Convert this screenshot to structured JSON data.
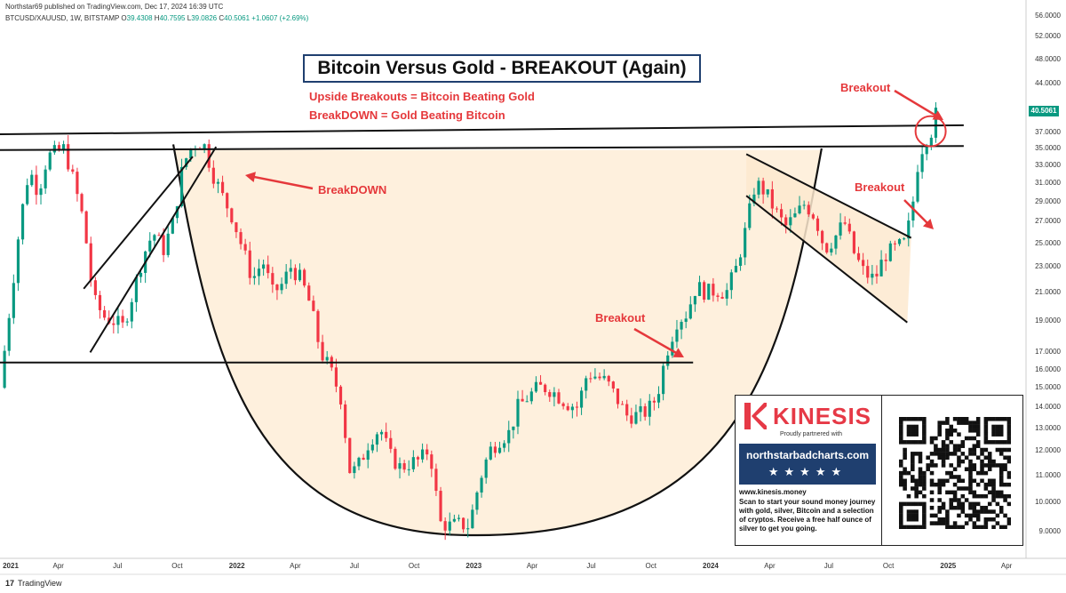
{
  "header": {
    "publisher": "Northstar69 published on TradingView.com, Dec 17, 2024 16:39 UTC",
    "symbol": "BTCUSD/XAUUSD, 1W, BITSTAMP",
    "open_label": "O",
    "open": "39.4308",
    "high_label": "H",
    "high": "40.7595",
    "low_label": "L",
    "low": "39.0826",
    "close_label": "C",
    "close": "40.5061",
    "change": "+1.0607 (+2.69%)"
  },
  "annotations": {
    "title": "Bitcoin Versus Gold - BREAKOUT (Again)",
    "subtitle1": "Upside Breakouts = Bitcoin Beating Gold",
    "subtitle2": "BreakDOWN = Gold Beating Bitcoin",
    "breakdown": "BreakDOWN",
    "breakout": "Breakout",
    "breakout_top": "Breakout",
    "breakout_wedge": "Breakout"
  },
  "price_tag": "40.5061",
  "footer": {
    "brand": "TradingView",
    "mark": "17"
  },
  "colors": {
    "up": "#089981",
    "down": "#f23645",
    "accent": "#e5383b",
    "fill": "#fde9cf",
    "navy": "#1f3f6f"
  },
  "ad": {
    "brand": "KINESIS",
    "tagline": "Proudly partnered with",
    "site_banner": "northstarbadcharts.com",
    "stars": "★★★★★",
    "url": "www.kinesis.money",
    "body": "Scan to start your sound money journey with gold, silver, Bitcoin and a selection of cryptos. Receive a free half ounce of silver to get you going.",
    "qr_icon": "qr-code-icon",
    "logo_icon": "kinesis-k-icon"
  },
  "chart_data": {
    "type": "candlestick",
    "title": "Bitcoin Versus Gold - BREAKOUT (Again)",
    "scale": "log",
    "ylim": [
      8.2,
      57
    ],
    "xlim": [
      "2021-01-01",
      "2025-05-01"
    ],
    "yticks": [
      "56.0000",
      "52.0000",
      "48.0000",
      "44.0000",
      "37.0000",
      "35.0000",
      "33.0000",
      "31.0000",
      "29.0000",
      "27.0000",
      "25.0000",
      "23.0000",
      "21.0000",
      "19.0000",
      "17.0000",
      "16.0000",
      "15.0000",
      "14.0000",
      "13.0000",
      "12.0000",
      "11.0000",
      "10.0000",
      "9.0000"
    ],
    "xticks": [
      {
        "label": "2021",
        "date": "2021-01-01",
        "bold": true
      },
      {
        "label": "Apr",
        "date": "2021-04-01"
      },
      {
        "label": "Jul",
        "date": "2021-07-01"
      },
      {
        "label": "Oct",
        "date": "2021-10-01"
      },
      {
        "label": "2022",
        "date": "2022-01-01",
        "bold": true
      },
      {
        "label": "Apr",
        "date": "2022-04-01"
      },
      {
        "label": "Jul",
        "date": "2022-07-01"
      },
      {
        "label": "Oct",
        "date": "2022-10-01"
      },
      {
        "label": "2023",
        "date": "2023-01-01",
        "bold": true
      },
      {
        "label": "Apr",
        "date": "2023-04-01"
      },
      {
        "label": "Jul",
        "date": "2023-07-01"
      },
      {
        "label": "Oct",
        "date": "2023-10-01"
      },
      {
        "label": "2024",
        "date": "2024-01-01",
        "bold": true
      },
      {
        "label": "Apr",
        "date": "2024-04-01"
      },
      {
        "label": "Jul",
        "date": "2024-07-01"
      },
      {
        "label": "Oct",
        "date": "2024-10-01"
      },
      {
        "label": "2025",
        "date": "2025-01-01",
        "bold": true
      },
      {
        "label": "Apr",
        "date": "2025-04-01"
      }
    ],
    "series_path": [
      [
        "2021-01-01",
        15.0
      ],
      [
        "2021-01-15",
        19.5
      ],
      [
        "2021-02-01",
        27.0
      ],
      [
        "2021-02-15",
        32.5
      ],
      [
        "2021-03-01",
        30.0
      ],
      [
        "2021-03-15",
        34.0
      ],
      [
        "2021-04-10",
        35.0
      ],
      [
        "2021-04-25",
        31.0
      ],
      [
        "2021-05-10",
        27.0
      ],
      [
        "2021-05-25",
        20.5
      ],
      [
        "2021-06-10",
        19.3
      ],
      [
        "2021-06-25",
        19.0
      ],
      [
        "2021-07-10",
        18.6
      ],
      [
        "2021-07-25",
        21.0
      ],
      [
        "2021-08-10",
        24.0
      ],
      [
        "2021-08-25",
        26.0
      ],
      [
        "2021-09-10",
        24.5
      ],
      [
        "2021-09-25",
        27.0
      ],
      [
        "2021-10-10",
        33.0
      ],
      [
        "2021-10-25",
        35.5
      ],
      [
        "2021-11-10",
        35.8
      ],
      [
        "2021-11-25",
        32.0
      ],
      [
        "2021-12-10",
        29.5
      ],
      [
        "2021-12-25",
        27.5
      ],
      [
        "2022-01-10",
        24.5
      ],
      [
        "2022-01-25",
        22.0
      ],
      [
        "2022-02-10",
        23.5
      ],
      [
        "2022-02-25",
        21.0
      ],
      [
        "2022-03-10",
        21.5
      ],
      [
        "2022-03-25",
        23.0
      ],
      [
        "2022-04-10",
        22.0
      ],
      [
        "2022-04-25",
        20.0
      ],
      [
        "2022-05-10",
        17.0
      ],
      [
        "2022-05-25",
        16.0
      ],
      [
        "2022-06-10",
        14.5
      ],
      [
        "2022-06-25",
        11.0
      ],
      [
        "2022-07-10",
        11.5
      ],
      [
        "2022-07-25",
        12.5
      ],
      [
        "2022-08-10",
        13.0
      ],
      [
        "2022-08-25",
        11.8
      ],
      [
        "2022-09-10",
        11.3
      ],
      [
        "2022-09-25",
        11.5
      ],
      [
        "2022-10-10",
        11.6
      ],
      [
        "2022-10-25",
        12.1
      ],
      [
        "2022-11-10",
        9.3
      ],
      [
        "2022-11-25",
        9.2
      ],
      [
        "2022-12-10",
        9.25
      ],
      [
        "2022-12-25",
        9.2
      ],
      [
        "2023-01-10",
        10.8
      ],
      [
        "2023-01-25",
        12.0
      ],
      [
        "2023-02-10",
        12.5
      ],
      [
        "2023-02-25",
        12.8
      ],
      [
        "2023-03-10",
        14.0
      ],
      [
        "2023-03-25",
        14.5
      ],
      [
        "2023-04-10",
        15.0
      ],
      [
        "2023-04-25",
        15.0
      ],
      [
        "2023-05-10",
        14.6
      ],
      [
        "2023-05-25",
        14.2
      ],
      [
        "2023-06-10",
        14.0
      ],
      [
        "2023-06-25",
        15.8
      ],
      [
        "2023-07-10",
        15.6
      ],
      [
        "2023-07-25",
        15.3
      ],
      [
        "2023-08-10",
        14.4
      ],
      [
        "2023-08-25",
        13.6
      ],
      [
        "2023-09-10",
        13.6
      ],
      [
        "2023-09-25",
        13.8
      ],
      [
        "2023-10-10",
        14.5
      ],
      [
        "2023-10-25",
        17.0
      ],
      [
        "2023-11-10",
        19.0
      ],
      [
        "2023-11-25",
        19.5
      ],
      [
        "2023-12-10",
        21.5
      ],
      [
        "2023-12-25",
        21.0
      ],
      [
        "2024-01-10",
        21.2
      ],
      [
        "2024-01-25",
        21.0
      ],
      [
        "2024-02-10",
        23.0
      ],
      [
        "2024-02-25",
        26.5
      ],
      [
        "2024-03-10",
        31.0
      ],
      [
        "2024-03-25",
        30.0
      ],
      [
        "2024-04-10",
        28.0
      ],
      [
        "2024-04-25",
        26.5
      ],
      [
        "2024-05-10",
        27.5
      ],
      [
        "2024-05-25",
        28.8
      ],
      [
        "2024-06-10",
        27.5
      ],
      [
        "2024-06-25",
        24.5
      ],
      [
        "2024-07-10",
        25.5
      ],
      [
        "2024-07-25",
        27.0
      ],
      [
        "2024-08-10",
        24.0
      ],
      [
        "2024-08-25",
        22.5
      ],
      [
        "2024-09-10",
        22.0
      ],
      [
        "2024-09-25",
        24.0
      ],
      [
        "2024-10-10",
        24.5
      ],
      [
        "2024-10-25",
        25.0
      ],
      [
        "2024-11-05",
        27.5
      ],
      [
        "2024-11-15",
        33.0
      ],
      [
        "2024-11-25",
        36.0
      ],
      [
        "2024-12-05",
        37.0
      ],
      [
        "2024-12-10",
        38.0
      ],
      [
        "2024-12-15",
        40.5061
      ]
    ],
    "lines": [
      {
        "name": "upper-resistance",
        "from": [
          "2021-01-01",
          36.8
        ],
        "to": [
          "2025-01-25",
          38.0
        ]
      },
      {
        "name": "lower-resistance",
        "from": [
          "2021-01-01",
          34.8
        ],
        "to": [
          "2025-01-25",
          35.3
        ]
      },
      {
        "name": "support",
        "from": [
          "2021-01-01",
          16.4
        ],
        "to": [
          "2023-12-05",
          16.4
        ]
      },
      {
        "name": "channel-low",
        "from": [
          "2021-05-20",
          17.0
        ],
        "to": [
          "2021-11-30",
          35.2
        ]
      },
      {
        "name": "channel-high",
        "from": [
          "2021-05-10",
          21.3
        ],
        "to": [
          "2021-10-25",
          34.0
        ]
      },
      {
        "name": "wedge-top",
        "from": [
          "2024-02-25",
          34.3
        ],
        "to": [
          "2024-11-05",
          25.5
        ]
      },
      {
        "name": "wedge-bottom",
        "from": [
          "2024-02-25",
          29.6
        ],
        "to": [
          "2024-10-30",
          18.9
        ]
      }
    ],
    "cup": {
      "left": [
        "2021-09-25",
        35.5
      ],
      "bottom": [
        "2023-01-01",
        8.9
      ],
      "right": [
        "2024-06-20",
        35.0
      ]
    },
    "circle_center": [
      "2024-12-05",
      37.2
    ]
  }
}
